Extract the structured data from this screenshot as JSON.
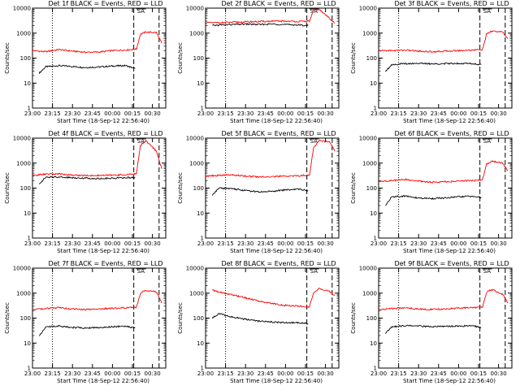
{
  "common": {
    "x_ticks": [
      "23:00",
      "23:15",
      "23:30",
      "23:45",
      "00:00",
      "00:15",
      "00:30"
    ],
    "y_ticks": [
      "1",
      "10",
      "100",
      "1000",
      "10000"
    ],
    "ylabel": "Counts/sec",
    "xlabel": "Start Time (18-Sep-12 22:56:40)",
    "marker_label": "SA",
    "colors": {
      "events": "#000000",
      "lld": "#ff0000"
    }
  },
  "chart_data": [
    {
      "type": "line",
      "title": "Det 1f BLACK = Events, RED = LLD",
      "xlabel": "Start Time (18-Sep-12 22:56:40)",
      "ylabel": "Counts/sec",
      "ylog": true,
      "ylim": [
        1,
        10000
      ],
      "xlim_min": [
        0,
        100
      ],
      "series": [
        {
          "name": "Events",
          "color": "#000000",
          "x": [
            5,
            10,
            20,
            30,
            40,
            50,
            60,
            70,
            77
          ],
          "y": [
            25,
            45,
            50,
            46,
            42,
            44,
            48,
            50,
            38
          ]
        },
        {
          "name": "LLD",
          "color": "#ff0000",
          "x": [
            0,
            10,
            20,
            30,
            40,
            50,
            60,
            70,
            78,
            81,
            85,
            93,
            97
          ],
          "y": [
            200,
            180,
            220,
            190,
            170,
            175,
            200,
            210,
            230,
            900,
            1100,
            1050,
            400
          ]
        }
      ]
    },
    {
      "type": "line",
      "title": "Det 2f BLACK = Events, RED = LLD",
      "xlabel": "Start Time (18-Sep-12 22:56:40)",
      "ylabel": "Counts/sec",
      "ylog": true,
      "ylim": [
        1,
        10000
      ],
      "xlim_min": [
        0,
        100
      ],
      "series": [
        {
          "name": "Events",
          "color": "#000000",
          "x": [
            5,
            10,
            20,
            30,
            40,
            50,
            60,
            70,
            77
          ],
          "y": [
            2000,
            2100,
            2200,
            2300,
            2200,
            2300,
            2200,
            2100,
            2000
          ]
        },
        {
          "name": "LLD",
          "color": "#ff0000",
          "x": [
            0,
            10,
            20,
            30,
            40,
            50,
            60,
            70,
            78,
            81,
            85,
            93,
            97
          ],
          "y": [
            2600,
            2600,
            2700,
            2800,
            2900,
            3000,
            3000,
            2900,
            3000,
            8000,
            9000,
            4000,
            2500
          ]
        }
      ]
    },
    {
      "type": "line",
      "title": "Det 3f BLACK = Events, RED = LLD",
      "xlabel": "Start Time (18-Sep-12 22:56:40)",
      "ylabel": "Counts/sec",
      "ylog": true,
      "ylim": [
        1,
        10000
      ],
      "xlim_min": [
        0,
        100
      ],
      "series": [
        {
          "name": "Events",
          "color": "#000000",
          "x": [
            5,
            10,
            20,
            30,
            40,
            50,
            60,
            70,
            77
          ],
          "y": [
            30,
            55,
            60,
            62,
            58,
            60,
            62,
            60,
            55
          ]
        },
        {
          "name": "LLD",
          "color": "#ff0000",
          "x": [
            0,
            10,
            20,
            30,
            40,
            50,
            60,
            70,
            78,
            81,
            85,
            93,
            97
          ],
          "y": [
            200,
            200,
            210,
            190,
            180,
            190,
            200,
            210,
            220,
            900,
            1200,
            1100,
            600
          ]
        }
      ]
    },
    {
      "type": "line",
      "title": "Det 4f BLACK = Events, RED = LLD",
      "xlabel": "Start Time (18-Sep-12 22:56:40)",
      "ylabel": "Counts/sec",
      "ylog": true,
      "ylim": [
        1,
        10000
      ],
      "xlim_min": [
        0,
        100
      ],
      "series": [
        {
          "name": "Events",
          "color": "#000000",
          "x": [
            5,
            10,
            20,
            30,
            40,
            50,
            60,
            70,
            77
          ],
          "y": [
            150,
            270,
            280,
            260,
            250,
            240,
            250,
            260,
            270
          ]
        },
        {
          "name": "LLD",
          "color": "#ff0000",
          "x": [
            0,
            10,
            20,
            30,
            40,
            50,
            60,
            70,
            78,
            81,
            85,
            93,
            97
          ],
          "y": [
            320,
            360,
            370,
            330,
            320,
            320,
            330,
            340,
            380,
            5000,
            8000,
            3000,
            600
          ]
        }
      ]
    },
    {
      "type": "line",
      "title": "Det 5f BLACK = Events, RED = LLD",
      "xlabel": "Start Time (18-Sep-12 22:56:40)",
      "ylabel": "Counts/sec",
      "ylog": true,
      "ylim": [
        1,
        10000
      ],
      "xlim_min": [
        0,
        100
      ],
      "series": [
        {
          "name": "Events",
          "color": "#000000",
          "x": [
            5,
            10,
            20,
            30,
            40,
            50,
            60,
            70,
            77
          ],
          "y": [
            50,
            100,
            95,
            80,
            70,
            75,
            85,
            90,
            80
          ]
        },
        {
          "name": "LLD",
          "color": "#ff0000",
          "x": [
            0,
            10,
            20,
            30,
            40,
            50,
            60,
            70,
            78,
            81,
            85,
            93,
            97
          ],
          "y": [
            300,
            320,
            340,
            300,
            280,
            290,
            300,
            310,
            330,
            4000,
            8000,
            7000,
            3000
          ]
        }
      ]
    },
    {
      "type": "line",
      "title": "Det 6f BLACK = Events, RED = LLD",
      "xlabel": "Start Time (18-Sep-12 22:56:40)",
      "ylabel": "Counts/sec",
      "ylog": true,
      "ylim": [
        1,
        10000
      ],
      "xlim_min": [
        0,
        100
      ],
      "series": [
        {
          "name": "Events",
          "color": "#000000",
          "x": [
            5,
            10,
            20,
            30,
            40,
            50,
            60,
            70,
            77
          ],
          "y": [
            20,
            45,
            48,
            40,
            38,
            40,
            45,
            47,
            42
          ]
        },
        {
          "name": "LLD",
          "color": "#ff0000",
          "x": [
            0,
            10,
            20,
            30,
            40,
            50,
            60,
            70,
            78,
            81,
            85,
            93,
            97
          ],
          "y": [
            180,
            200,
            220,
            190,
            170,
            180,
            190,
            200,
            210,
            900,
            1200,
            1000,
            500
          ]
        }
      ]
    },
    {
      "type": "line",
      "title": "Det 7f BLACK = Events, RED = LLD",
      "xlabel": "Start Time (18-Sep-12 22:56:40)",
      "ylabel": "Counts/sec",
      "ylog": true,
      "ylim": [
        1,
        10000
      ],
      "xlim_min": [
        0,
        100
      ],
      "series": [
        {
          "name": "Events",
          "color": "#000000",
          "x": [
            5,
            10,
            20,
            30,
            40,
            50,
            60,
            70,
            77
          ],
          "y": [
            20,
            45,
            48,
            42,
            40,
            42,
            45,
            47,
            40
          ]
        },
        {
          "name": "LLD",
          "color": "#ff0000",
          "x": [
            0,
            10,
            20,
            30,
            40,
            50,
            60,
            70,
            78,
            81,
            85,
            93,
            97
          ],
          "y": [
            220,
            240,
            260,
            230,
            220,
            230,
            250,
            260,
            270,
            1000,
            1300,
            1100,
            400
          ]
        }
      ]
    },
    {
      "type": "line",
      "title": "Det 8f BLACK = Events, RED = LLD",
      "xlabel": "Start Time (18-Sep-12 22:56:40)",
      "ylabel": "Counts/sec",
      "ylog": true,
      "ylim": [
        1,
        10000
      ],
      "xlim_min": [
        0,
        100
      ],
      "series": [
        {
          "name": "Events",
          "color": "#000000",
          "x": [
            5,
            10,
            20,
            30,
            40,
            50,
            60,
            70,
            77
          ],
          "y": [
            100,
            150,
            110,
            90,
            75,
            70,
            65,
            65,
            60
          ]
        },
        {
          "name": "LLD",
          "color": "#ff0000",
          "x": [
            5,
            10,
            20,
            30,
            40,
            50,
            60,
            70,
            78,
            81,
            85,
            93,
            97
          ],
          "y": [
            1300,
            1100,
            850,
            650,
            480,
            380,
            320,
            300,
            280,
            1000,
            1500,
            1200,
            800
          ]
        }
      ]
    },
    {
      "type": "line",
      "title": "Det 9f BLACK = Events, RED = LLD",
      "xlabel": "Start Time (18-Sep-12 22:56:40)",
      "ylabel": "Counts/sec",
      "ylog": true,
      "ylim": [
        1,
        10000
      ],
      "xlim_min": [
        0,
        100
      ],
      "series": [
        {
          "name": "Events",
          "color": "#000000",
          "x": [
            5,
            10,
            20,
            30,
            40,
            50,
            60,
            70,
            77
          ],
          "y": [
            25,
            45,
            50,
            48,
            45,
            46,
            48,
            50,
            42
          ]
        },
        {
          "name": "LLD",
          "color": "#ff0000",
          "x": [
            0,
            10,
            20,
            30,
            40,
            50,
            60,
            70,
            78,
            81,
            85,
            93,
            97
          ],
          "y": [
            220,
            240,
            260,
            230,
            220,
            230,
            250,
            260,
            270,
            1100,
            1400,
            900,
            400
          ]
        }
      ]
    }
  ]
}
